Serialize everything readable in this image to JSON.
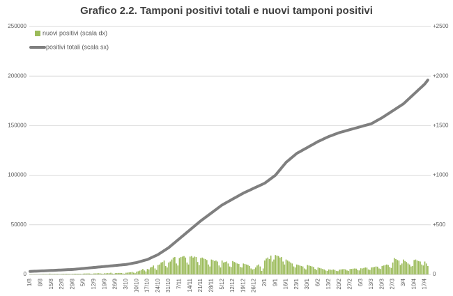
{
  "chart_data": {
    "type": "bar-line",
    "title": "Grafico 2.2. Tamponi positivi totali e nuovi tamponi positivi",
    "categories": [
      "1/8",
      null,
      null,
      null,
      null,
      null,
      null,
      "8/8",
      null,
      null,
      null,
      null,
      null,
      null,
      "15/8",
      null,
      null,
      null,
      null,
      null,
      null,
      "22/8",
      null,
      null,
      null,
      null,
      null,
      null,
      "29/8",
      null,
      null,
      null,
      null,
      null,
      null,
      "5/9",
      null,
      null,
      null,
      null,
      null,
      null,
      "12/9",
      null,
      null,
      null,
      null,
      null,
      null,
      "19/9",
      null,
      null,
      null,
      null,
      null,
      null,
      "26/9",
      null,
      null,
      null,
      null,
      null,
      null,
      "3/10",
      null,
      null,
      null,
      null,
      null,
      null,
      "10/10",
      null,
      null,
      null,
      null,
      null,
      null,
      "17/10",
      null,
      null,
      null,
      null,
      null,
      null,
      "24/10",
      null,
      null,
      null,
      null,
      null,
      null,
      "31/10",
      null,
      null,
      null,
      null,
      null,
      null,
      "7/11",
      null,
      null,
      null,
      null,
      null,
      null,
      "14/11",
      null,
      null,
      null,
      null,
      null,
      null,
      "21/11",
      null,
      null,
      null,
      null,
      null,
      null,
      "28/11",
      null,
      null,
      null,
      null,
      null,
      null,
      "5/12",
      null,
      null,
      null,
      null,
      null,
      null,
      "12/12",
      null,
      null,
      null,
      null,
      null,
      null,
      "19/12",
      null,
      null,
      null,
      null,
      null,
      null,
      "26/12",
      null,
      null,
      null,
      null,
      null,
      null,
      "2/1",
      null,
      null,
      null,
      null,
      null,
      null,
      "9/1",
      null,
      null,
      null,
      null,
      null,
      null,
      "16/1",
      null,
      null,
      null,
      null,
      null,
      null,
      "23/1",
      null,
      null,
      null,
      null,
      null,
      null,
      "30/1",
      null,
      null,
      null,
      null,
      null,
      null,
      "6/2",
      null,
      null,
      null,
      null,
      null,
      null,
      "13/2",
      null,
      null,
      null,
      null,
      null,
      null,
      "20/2",
      null,
      null,
      null,
      null,
      null,
      null,
      "27/2",
      null,
      null,
      null,
      null,
      null,
      null,
      "6/3",
      null,
      null,
      null,
      null,
      null,
      null,
      "13/3",
      null,
      null,
      null,
      null,
      null,
      null,
      "20/3",
      null,
      null,
      null,
      null,
      null,
      null,
      "27/3",
      null,
      null,
      null,
      null,
      null,
      null,
      "3/4",
      null,
      null,
      null,
      null,
      null,
      null,
      "10/4",
      null,
      null,
      null,
      null,
      null,
      null,
      "17/4",
      null,
      null
    ],
    "series": [
      {
        "name": "nuovi positivi (scala dx)",
        "type": "bar",
        "axis": "y2",
        "color": "#9bbb59",
        "values": [
          3,
          3,
          3,
          3,
          3,
          2,
          2,
          3,
          4,
          4,
          4,
          4,
          3,
          8,
          4,
          4,
          5,
          5,
          5,
          4,
          3,
          5,
          6,
          6,
          6,
          6,
          5,
          3,
          6,
          7,
          7,
          7,
          7,
          6,
          4,
          8,
          9,
          9,
          10,
          9,
          7,
          4,
          10,
          10,
          11,
          12,
          11,
          8,
          5,
          12,
          11,
          13,
          12,
          17,
          9,
          6,
          13,
          14,
          15,
          15,
          14,
          10,
          7,
          17,
          18,
          20,
          22,
          25,
          18,
          12,
          28,
          32,
          38,
          45,
          55,
          40,
          30,
          55,
          50,
          70,
          75,
          90,
          60,
          45,
          95,
          100,
          120,
          125,
          140,
          85,
          70,
          120,
          130,
          150,
          170,
          175,
          110,
          90,
          165,
          175,
          180,
          185,
          170,
          120,
          100,
          180,
          185,
          170,
          180,
          175,
          125,
          95,
          165,
          170,
          160,
          155,
          145,
          100,
          80,
          150,
          145,
          135,
          140,
          130,
          90,
          70,
          140,
          120,
          125,
          130,
          110,
          80,
          75,
          135,
          125,
          120,
          110,
          105,
          75,
          70,
          110,
          105,
          100,
          95,
          85,
          60,
          50,
          55,
          70,
          90,
          100,
          80,
          35,
          60,
          140,
          160,
          170,
          155,
          190,
          130,
          150,
          195,
          190,
          185,
          170,
          175,
          130,
          100,
          150,
          140,
          130,
          120,
          110,
          80,
          70,
          100,
          95,
          90,
          85,
          80,
          60,
          50,
          95,
          90,
          85,
          80,
          75,
          55,
          45,
          70,
          65,
          60,
          55,
          50,
          40,
          35,
          50,
          48,
          45,
          50,
          45,
          35,
          33,
          48,
          50,
          52,
          55,
          50,
          40,
          36,
          55,
          55,
          58,
          60,
          58,
          45,
          40,
          62,
          60,
          65,
          70,
          68,
          50,
          45,
          70,
          72,
          75,
          80,
          78,
          60,
          55,
          85,
          90,
          95,
          100,
          95,
          75,
          65,
          120,
          165,
          155,
          145,
          140,
          95,
          110,
          150,
          135,
          125,
          110,
          100,
          80,
          85,
          145,
          150,
          140,
          135,
          130,
          100,
          90,
          130,
          110,
          85
        ]
      },
      {
        "name": "positivi totali (scala sx)",
        "type": "line",
        "axis": "y",
        "color": "#7f7f7f",
        "values": [
          3000,
          3070,
          3140,
          3210,
          3290,
          3360,
          3430,
          3500,
          3570,
          3640,
          3710,
          3790,
          3860,
          3930,
          4000,
          4070,
          4140,
          4210,
          4290,
          4360,
          4430,
          4500,
          4570,
          4640,
          4710,
          4790,
          4860,
          4930,
          5000,
          5140,
          5290,
          5430,
          5570,
          5710,
          5860,
          6000,
          6140,
          6290,
          6430,
          6570,
          6710,
          6860,
          7000,
          7140,
          7290,
          7430,
          7570,
          7710,
          7860,
          8000,
          8140,
          8290,
          8430,
          8570,
          8710,
          8860,
          9000,
          9140,
          9290,
          9430,
          9570,
          9710,
          9860,
          10000,
          10290,
          10570,
          10860,
          11140,
          11430,
          11710,
          12000,
          12430,
          12860,
          13290,
          13710,
          14140,
          14570,
          15000,
          15710,
          16430,
          17140,
          17860,
          18570,
          19290,
          20000,
          21000,
          22000,
          23000,
          24000,
          25000,
          26000,
          27000,
          28290,
          29570,
          30860,
          32140,
          33430,
          34710,
          36000,
          37290,
          38570,
          39860,
          41140,
          42430,
          43710,
          45000,
          46290,
          47570,
          48860,
          50140,
          51430,
          52710,
          54000,
          55140,
          56290,
          57430,
          58570,
          59710,
          60860,
          62000,
          63140,
          64290,
          65430,
          66570,
          67710,
          68860,
          70000,
          70860,
          71710,
          72570,
          73430,
          74290,
          75140,
          76000,
          76860,
          77710,
          78570,
          79430,
          80290,
          81140,
          82000,
          82710,
          83430,
          84140,
          84860,
          85570,
          86290,
          87000,
          87710,
          88430,
          89140,
          89860,
          90570,
          91290,
          92000,
          93140,
          94290,
          95430,
          96570,
          97710,
          98860,
          100000,
          101860,
          103710,
          105570,
          107430,
          109290,
          111140,
          113000,
          114290,
          115570,
          116860,
          118140,
          119430,
          120710,
          122000,
          122860,
          123710,
          124570,
          125430,
          126290,
          127140,
          128000,
          128860,
          129710,
          130570,
          131430,
          132290,
          133140,
          134000,
          134710,
          135430,
          136140,
          136860,
          137570,
          138290,
          139000,
          139570,
          140140,
          140710,
          141290,
          141860,
          142430,
          143000,
          143430,
          143860,
          144290,
          144710,
          145140,
          145570,
          146000,
          146430,
          146860,
          147290,
          147710,
          148140,
          148570,
          149000,
          149430,
          149860,
          150290,
          150710,
          151140,
          151570,
          152000,
          152860,
          153710,
          154570,
          155430,
          156290,
          157140,
          158000,
          159000,
          160000,
          161000,
          162000,
          163000,
          164000,
          165000,
          166000,
          167000,
          168000,
          169000,
          170000,
          171000,
          172000,
          173430,
          174860,
          176290,
          177710,
          179140,
          180570,
          182000,
          183430,
          184860,
          186290,
          187710,
          189140,
          190570,
          192000,
          194000,
          196000
        ]
      }
    ],
    "ylim": [
      0,
      250000
    ],
    "yticks": [
      0,
      50000,
      100000,
      150000,
      200000,
      250000
    ],
    "y2lim": [
      0,
      2500
    ],
    "y2ticks": [
      0,
      {
        "value": 500,
        "label": "+500"
      },
      {
        "value": 1000,
        "label": "+1000"
      },
      {
        "value": 1500,
        "label": "+1500"
      },
      {
        "value": 2000,
        "label": "+2000"
      },
      {
        "value": 2500,
        "label": "+2500"
      }
    ],
    "grid": true,
    "legend": "top-left"
  }
}
